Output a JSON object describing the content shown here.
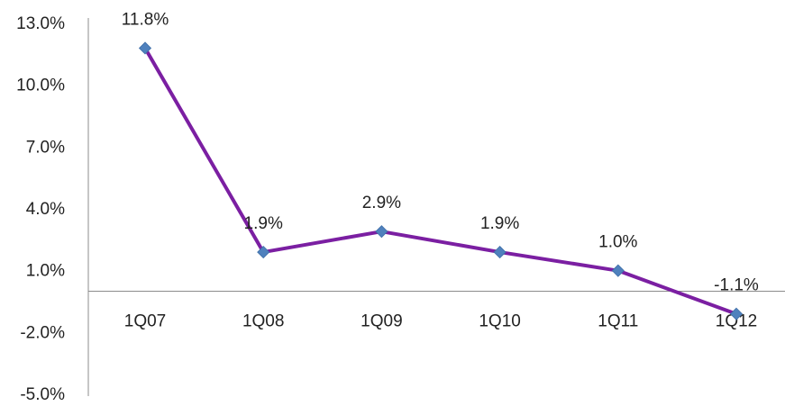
{
  "chart_data": {
    "type": "line",
    "title": "",
    "xlabel": "",
    "ylabel": "",
    "categories": [
      "1Q07",
      "1Q08",
      "1Q09",
      "1Q10",
      "1Q11",
      "1Q12"
    ],
    "series": [
      {
        "values": [
          11.8,
          1.9,
          2.9,
          1.9,
          1.0,
          -1.1
        ]
      }
    ],
    "data_labels": [
      "11.8%",
      "1.9%",
      "2.9%",
      "1.9%",
      "1.0%",
      "-1.1%"
    ],
    "ylim": [
      -5.0,
      13.0
    ],
    "y_ticks": [
      13.0,
      10.0,
      7.0,
      4.0,
      1.0,
      -2.0,
      -5.0
    ],
    "y_tick_labels": [
      "13.0%",
      "10.0%",
      "7.0%",
      "4.0%",
      "1.0%",
      "-2.0%",
      "-5.0%"
    ],
    "x_axis_crosses_at": 0,
    "grid": false,
    "legend": "none",
    "colors": {
      "line": "#7B1FA2",
      "marker": "#4F81BD",
      "axis": "#8C8C8C"
    }
  }
}
